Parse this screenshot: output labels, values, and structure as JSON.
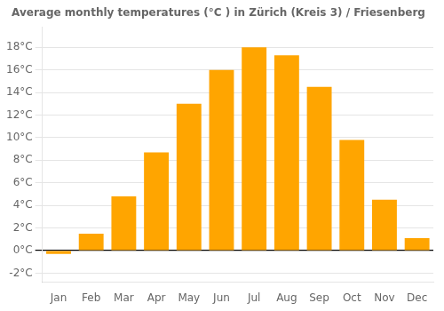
{
  "chart_data": {
    "type": "bar",
    "title": "Average monthly temperatures (°C ) in Zürich (Kreis 3) / Friesenberg",
    "categories": [
      "Jan",
      "Feb",
      "Mar",
      "Apr",
      "May",
      "Jun",
      "Jul",
      "Aug",
      "Sep",
      "Oct",
      "Nov",
      "Dec"
    ],
    "values": [
      -0.3,
      1.5,
      4.8,
      8.7,
      13.0,
      16.0,
      18.0,
      17.3,
      14.5,
      9.8,
      4.5,
      1.1
    ],
    "color": "#FFA500",
    "ylim": [
      -2.8,
      19.8
    ],
    "yticks": [
      {
        "value": -2,
        "label": "-2°C"
      },
      {
        "value": 0,
        "label": "0°C"
      },
      {
        "value": 2,
        "label": "2°C"
      },
      {
        "value": 4,
        "label": "4°C"
      },
      {
        "value": 6,
        "label": "6°C"
      },
      {
        "value": 8,
        "label": "8°C"
      },
      {
        "value": 10,
        "label": "10°C"
      },
      {
        "value": 12,
        "label": "12°C"
      },
      {
        "value": 14,
        "label": "14°C"
      },
      {
        "value": 16,
        "label": "16°C"
      },
      {
        "value": 18,
        "label": "18°C"
      }
    ],
    "grid": true
  }
}
